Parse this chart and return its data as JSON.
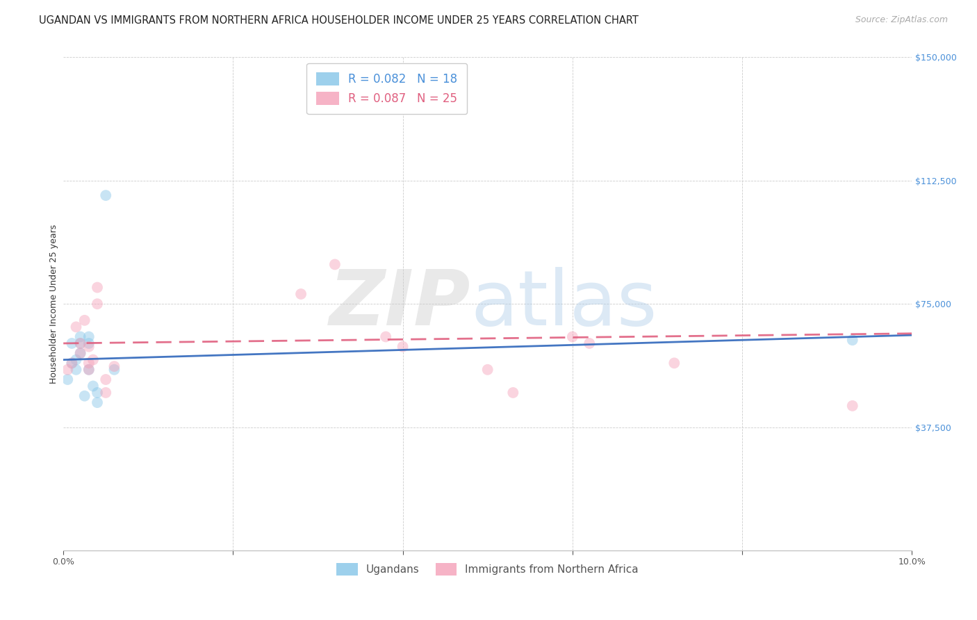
{
  "title": "UGANDAN VS IMMIGRANTS FROM NORTHERN AFRICA HOUSEHOLDER INCOME UNDER 25 YEARS CORRELATION CHART",
  "source": "Source: ZipAtlas.com",
  "ylabel": "Householder Income Under 25 years",
  "xlim": [
    0,
    0.1
  ],
  "ylim": [
    0,
    150000
  ],
  "yticks": [
    0,
    37500,
    75000,
    112500,
    150000
  ],
  "ytick_labels": [
    "",
    "$37,500",
    "$75,000",
    "$112,500",
    "$150,000"
  ],
  "legend_labels_bottom": [
    "Ugandans",
    "Immigrants from Northern Africa"
  ],
  "blue_color": "#85c5e8",
  "pink_color": "#f4a0b8",
  "blue_line_color": "#3a6fbf",
  "pink_line_color": "#e06080",
  "background_color": "#ffffff",
  "grid_color": "#cccccc",
  "blue_r": 0.082,
  "blue_n": 18,
  "pink_r": 0.087,
  "pink_n": 25,
  "marker_size": 130,
  "marker_alpha": 0.45,
  "blue_x": [
    0.0005,
    0.001,
    0.001,
    0.0015,
    0.0015,
    0.002,
    0.002,
    0.002,
    0.0025,
    0.003,
    0.003,
    0.003,
    0.0035,
    0.004,
    0.004,
    0.005,
    0.006,
    0.093
  ],
  "blue_y": [
    52000,
    63000,
    57000,
    55000,
    58000,
    60000,
    63000,
    65000,
    47000,
    65000,
    63000,
    55000,
    50000,
    48000,
    45000,
    108000,
    55000,
    64000
  ],
  "pink_x": [
    0.0005,
    0.001,
    0.0015,
    0.002,
    0.002,
    0.0025,
    0.003,
    0.003,
    0.003,
    0.0035,
    0.004,
    0.004,
    0.005,
    0.005,
    0.006,
    0.028,
    0.032,
    0.038,
    0.04,
    0.05,
    0.053,
    0.06,
    0.062,
    0.072,
    0.093
  ],
  "pink_y": [
    55000,
    57000,
    68000,
    63000,
    60000,
    70000,
    62000,
    57000,
    55000,
    58000,
    75000,
    80000,
    52000,
    48000,
    56000,
    78000,
    87000,
    65000,
    62000,
    55000,
    48000,
    65000,
    63000,
    57000,
    44000
  ],
  "title_fontsize": 10.5,
  "axis_label_fontsize": 9,
  "tick_fontsize": 9,
  "legend_fontsize": 11,
  "source_fontsize": 9
}
